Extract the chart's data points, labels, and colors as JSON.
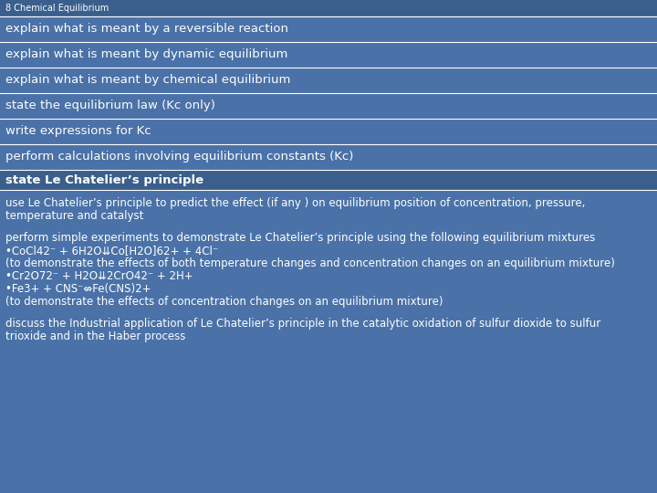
{
  "bg_color": "#4a72a8",
  "header_bg": "#3a5f8c",
  "separator_bg": "#3d6596",
  "white_color": "#ffffff",
  "title": "8 Chemical Equilibrium",
  "title_fontsize": 7.0,
  "item_fontsize": 9.5,
  "small_fontsize": 8.5,
  "normal_items": [
    "explain what is meant by a reversible reaction",
    "explain what is meant by dynamic equilibrium",
    "explain what is meant by chemical equilibrium",
    "state the equilibrium law (Kc only)",
    "write expressions for Kc",
    "perform calculations involving equilibrium constants (Kc)"
  ],
  "bold_section_text": "state Le Chatelier’s principle",
  "sections": [
    {
      "text": "use Le Chatelier’s principle to predict the effect (if any ) on equilibrium position of concentration, pressure,\ntemperature and catalyst",
      "bold": false
    },
    {
      "text": "perform simple experiments to demonstrate Le Chatelier’s principle using the following equilibrium mixtures\n•CoCl42⁻ + 6H2O⇊Co[H2O]62+ + 4Cl⁻\n(to demonstrate the effects of both temperature changes and concentration changes on an equilibrium mixture)\n•Cr2O72⁻ + H2O⇊2CrO42⁻ + 2H+\n•Fe3+ + CNS⁻⇎Fe(CNS)2+\n(to demonstrate the effects of concentration changes on an equilibrium mixture)",
      "bold": false
    },
    {
      "text": "discuss the Industrial application of Le Chatelier’s principle in the catalytic oxidation of sulfur dioxide to sulfur\ntrioxide and in the Haber process",
      "bold": false
    }
  ],
  "fig_width": 7.2,
  "fig_height": 5.4,
  "dpi": 100
}
